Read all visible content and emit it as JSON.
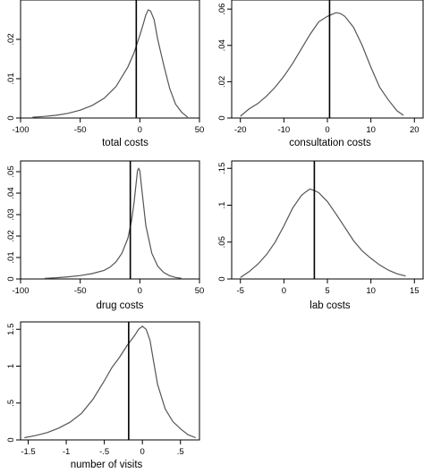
{
  "chart_data": [
    {
      "type": "line",
      "xlabel": "total costs",
      "ylabel": "",
      "xlim": [
        -100,
        50
      ],
      "ylim": [
        0,
        0.03
      ],
      "x_ticks": [
        {
          "v": -100,
          "label": "-100"
        },
        {
          "v": -50,
          "label": "-50"
        },
        {
          "v": 0,
          "label": "0"
        },
        {
          "v": 50,
          "label": "50"
        }
      ],
      "y_ticks": [
        {
          "v": 0,
          "label": "0"
        },
        {
          "v": 0.01,
          "label": ".01"
        },
        {
          "v": 0.02,
          "label": ".02"
        }
      ],
      "vline": -3,
      "series": [
        {
          "x": [
            -90,
            -80,
            -70,
            -60,
            -50,
            -40,
            -30,
            -20,
            -10,
            -5,
            0,
            3,
            5,
            7,
            9,
            12,
            15,
            20,
            25,
            30,
            35,
            40
          ],
          "y": [
            0.0002,
            0.0004,
            0.0007,
            0.0012,
            0.002,
            0.0032,
            0.005,
            0.008,
            0.013,
            0.0165,
            0.021,
            0.024,
            0.0262,
            0.0275,
            0.0272,
            0.025,
            0.02,
            0.0135,
            0.0075,
            0.0035,
            0.0015,
            0.0002
          ]
        }
      ]
    },
    {
      "type": "line",
      "xlabel": "consultation costs",
      "ylabel": "",
      "xlim": [
        -22,
        22
      ],
      "ylim": [
        0,
        0.065
      ],
      "x_ticks": [
        {
          "v": -20,
          "label": "-20"
        },
        {
          "v": -10,
          "label": "-10"
        },
        {
          "v": 0,
          "label": "0"
        },
        {
          "v": 10,
          "label": "10"
        },
        {
          "v": 20,
          "label": "20"
        }
      ],
      "y_ticks": [
        {
          "v": 0,
          "label": "0"
        },
        {
          "v": 0.02,
          "label": ".02"
        },
        {
          "v": 0.04,
          "label": ".04"
        },
        {
          "v": 0.06,
          "label": ".06"
        }
      ],
      "vline": 0.5,
      "series": [
        {
          "x": [
            -20,
            -18,
            -16,
            -14,
            -12,
            -10,
            -8,
            -6,
            -4,
            -2,
            0,
            1,
            2,
            3,
            4,
            6,
            8,
            10,
            12,
            14,
            16,
            17.5
          ],
          "y": [
            0.001,
            0.005,
            0.008,
            0.012,
            0.017,
            0.023,
            0.03,
            0.038,
            0.046,
            0.053,
            0.056,
            0.057,
            0.058,
            0.0575,
            0.056,
            0.05,
            0.04,
            0.028,
            0.017,
            0.01,
            0.004,
            0.0015
          ]
        }
      ]
    },
    {
      "type": "line",
      "xlabel": "drug costs",
      "ylabel": "",
      "xlim": [
        -100,
        50
      ],
      "ylim": [
        0,
        0.055
      ],
      "x_ticks": [
        {
          "v": -100,
          "label": "-100"
        },
        {
          "v": -50,
          "label": "-50"
        },
        {
          "v": 0,
          "label": "0"
        },
        {
          "v": 50,
          "label": "50"
        }
      ],
      "y_ticks": [
        {
          "v": 0,
          "label": "0"
        },
        {
          "v": 0.01,
          "label": ".01"
        },
        {
          "v": 0.02,
          "label": ".02"
        },
        {
          "v": 0.03,
          "label": ".03"
        },
        {
          "v": 0.04,
          "label": ".04"
        },
        {
          "v": 0.05,
          "label": ".05"
        }
      ],
      "vline": -8,
      "series": [
        {
          "x": [
            -80,
            -70,
            -60,
            -50,
            -40,
            -30,
            -25,
            -20,
            -15,
            -10,
            -7,
            -5,
            -3,
            -2,
            -1,
            0,
            2,
            5,
            10,
            15,
            20,
            25,
            30,
            35
          ],
          "y": [
            0.0003,
            0.0006,
            0.001,
            0.0016,
            0.0025,
            0.004,
            0.0055,
            0.008,
            0.012,
            0.019,
            0.027,
            0.035,
            0.045,
            0.0505,
            0.0515,
            0.0505,
            0.04,
            0.025,
            0.012,
            0.006,
            0.003,
            0.0015,
            0.0007,
            0.0003
          ]
        }
      ]
    },
    {
      "type": "line",
      "xlabel": "lab costs",
      "ylabel": "",
      "xlim": [
        -6,
        16
      ],
      "ylim": [
        0,
        0.16
      ],
      "x_ticks": [
        {
          "v": -5,
          "label": "-5"
        },
        {
          "v": 0,
          "label": "0"
        },
        {
          "v": 5,
          "label": "5"
        },
        {
          "v": 10,
          "label": "10"
        },
        {
          "v": 15,
          "label": "15"
        }
      ],
      "y_ticks": [
        {
          "v": 0,
          "label": "0"
        },
        {
          "v": 0.05,
          "label": ".05"
        },
        {
          "v": 0.1,
          "label": ".1"
        },
        {
          "v": 0.15,
          "label": ".15"
        }
      ],
      "vline": 3.5,
      "series": [
        {
          "x": [
            -5,
            -4,
            -3,
            -2,
            -1,
            0,
            1,
            2,
            2.5,
            3,
            3.5,
            4,
            5,
            6,
            7,
            8,
            9,
            10,
            11,
            12,
            13,
            14
          ],
          "y": [
            0.002,
            0.01,
            0.02,
            0.033,
            0.05,
            0.072,
            0.096,
            0.113,
            0.118,
            0.122,
            0.12,
            0.117,
            0.105,
            0.088,
            0.07,
            0.052,
            0.038,
            0.028,
            0.019,
            0.012,
            0.007,
            0.004
          ]
        }
      ]
    },
    {
      "type": "line",
      "xlabel": "number of visits",
      "ylabel": "",
      "xlim": [
        -1.6,
        0.75
      ],
      "ylim": [
        0,
        1.6
      ],
      "x_ticks": [
        {
          "v": -1.5,
          "label": "-1.5"
        },
        {
          "v": -1,
          "label": "-1"
        },
        {
          "v": -0.5,
          "label": "-.5"
        },
        {
          "v": 0,
          "label": "0"
        },
        {
          "v": 0.5,
          "label": ".5"
        }
      ],
      "y_ticks": [
        {
          "v": 0,
          "label": "0"
        },
        {
          "v": 0.5,
          "label": ".5"
        },
        {
          "v": 1,
          "label": "1"
        },
        {
          "v": 1.5,
          "label": "1.5"
        }
      ],
      "vline": -0.18,
      "series": [
        {
          "x": [
            -1.55,
            -1.4,
            -1.25,
            -1.1,
            -0.95,
            -0.8,
            -0.65,
            -0.5,
            -0.4,
            -0.3,
            -0.2,
            -0.1,
            -0.05,
            0,
            0.05,
            0.1,
            0.15,
            0.2,
            0.3,
            0.4,
            0.5,
            0.6,
            0.7
          ],
          "y": [
            0.03,
            0.06,
            0.1,
            0.16,
            0.24,
            0.36,
            0.55,
            0.8,
            0.98,
            1.12,
            1.28,
            1.42,
            1.5,
            1.54,
            1.5,
            1.35,
            1.05,
            0.75,
            0.42,
            0.25,
            0.15,
            0.07,
            0.03
          ]
        }
      ]
    }
  ]
}
